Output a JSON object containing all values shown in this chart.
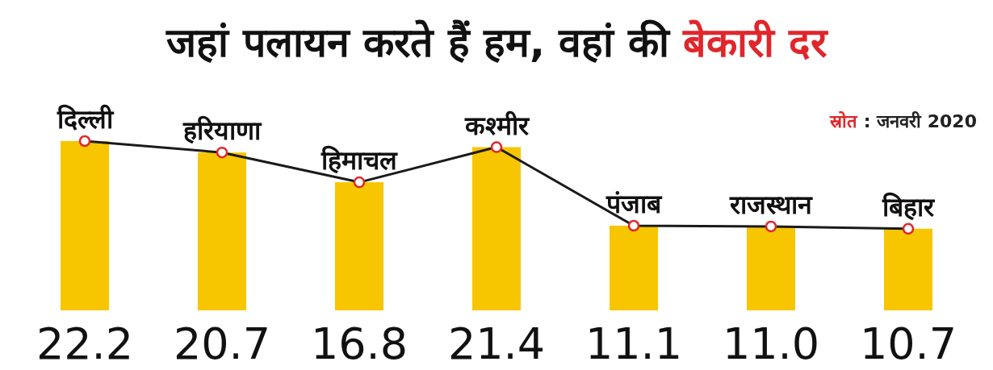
{
  "chart_data": {
    "type": "bar",
    "title": "जहां पलायन करते हैं हम, वहां की बेकारी दर",
    "categories": [
      "दिल्ली",
      "हरियाणा",
      "हिमाचल",
      "कश्मीर",
      "पंजाब",
      "राजस्थान",
      "बिहार"
    ],
    "series": [
      {
        "color": "#f7c600",
        "values": [
          22.2,
          20.7,
          16.8,
          21.4,
          11.1,
          11.0,
          10.7
        ],
        "value_labels": [
          "22.2",
          "20.7",
          "16.8",
          "21.4",
          "11.1",
          "11.0",
          "10.7"
        ]
      },
      {
        "type": "line",
        "color": "#1a1a1a",
        "values": [
          22.2,
          20.7,
          16.8,
          21.4,
          11.1,
          11.0,
          10.7
        ]
      }
    ],
    "marker": "circle",
    "annotations": [
      "स्रोत : जनवरी 2020"
    ]
  }
}
